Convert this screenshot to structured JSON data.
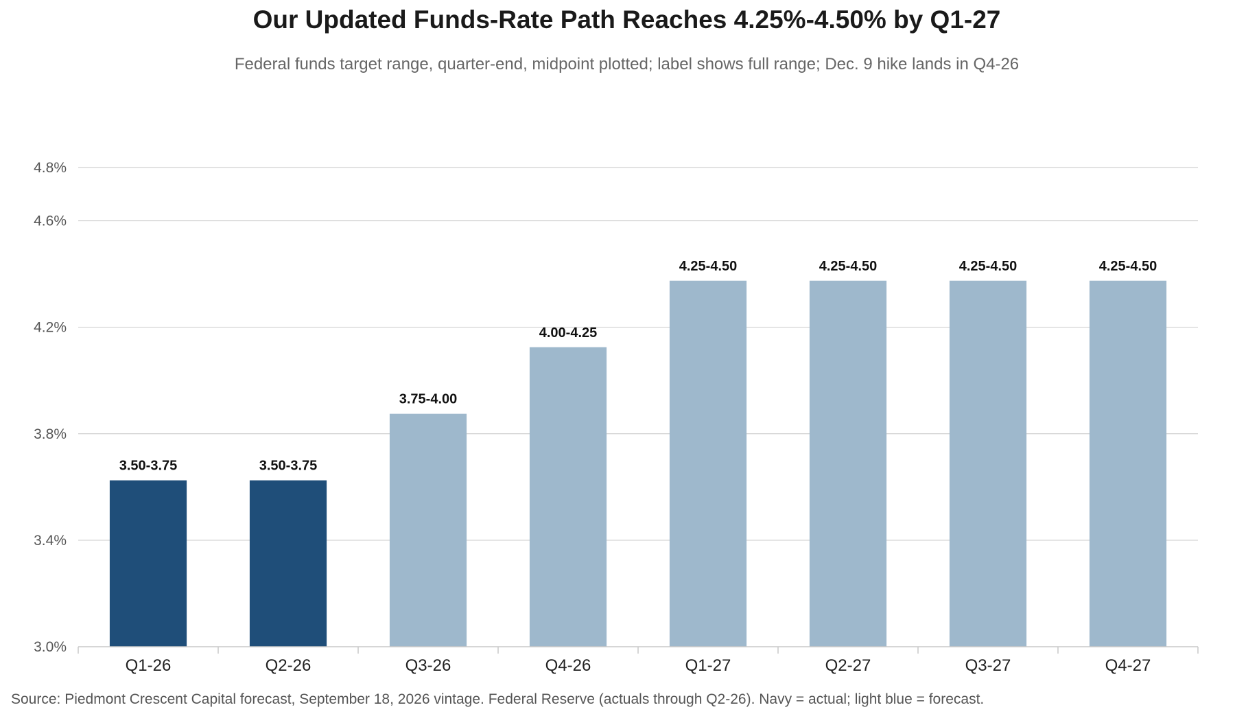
{
  "title": "Our Updated Funds-Rate Path Reaches 4.25%-4.50% by Q1-27",
  "subtitle": "Federal funds target range, quarter-end, midpoint plotted; label shows full range; Dec. 9 hike lands in Q4-26",
  "source": "Source: Piedmont Crescent Capital forecast, September 18, 2026 vintage. Federal Reserve (actuals through Q2-26). Navy = actual; light blue = forecast.",
  "chart_data": {
    "type": "bar",
    "categories": [
      "Q1-26",
      "Q2-26",
      "Q3-26",
      "Q4-26",
      "Q1-27",
      "Q2-27",
      "Q3-27",
      "Q4-27"
    ],
    "values": [
      3.625,
      3.625,
      3.875,
      4.125,
      4.375,
      4.375,
      4.375,
      4.375
    ],
    "bar_labels": [
      "3.50-3.75",
      "3.50-3.75",
      "3.75-4.00",
      "4.00-4.25",
      "4.25-4.50",
      "4.25-4.50",
      "4.25-4.50",
      "4.25-4.50"
    ],
    "status": [
      "actual",
      "actual",
      "forecast",
      "forecast",
      "forecast",
      "forecast",
      "forecast",
      "forecast"
    ],
    "colors": {
      "actual": "#1f4e79",
      "forecast": "#9eb8cc",
      "grid": "#d0d0d0",
      "axis": "#c8c8c8"
    },
    "ylim": [
      3.0,
      4.8
    ],
    "yticks": [
      3.0,
      3.4,
      3.8,
      4.2,
      4.6,
      4.8
    ],
    "ytick_labels": [
      "3.0%",
      "3.4%",
      "3.8%",
      "4.2%",
      "4.6%",
      "4.8%"
    ],
    "xlabel": "",
    "ylabel": "",
    "grid": true,
    "legend": "none"
  }
}
